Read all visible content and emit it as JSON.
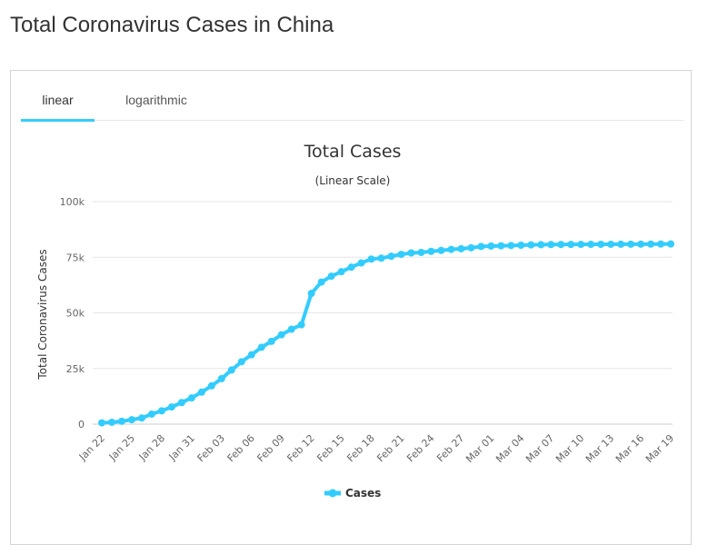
{
  "page": {
    "title": "Total Coronavirus Cases in China"
  },
  "tabs": [
    {
      "label": "linear",
      "active": true
    },
    {
      "label": "logarithmic",
      "active": false
    }
  ],
  "colors": {
    "series": "#33ccff",
    "tab_underline": "#33ccff",
    "grid": "#e6e6e6"
  },
  "chart_data": {
    "type": "line",
    "title": "Total Cases",
    "subtitle": "(Linear Scale)",
    "xlabel": "",
    "ylabel": "Total Coronavirus Cases",
    "ylim": [
      0,
      100000
    ],
    "y_ticks": [
      0,
      25000,
      50000,
      75000,
      100000
    ],
    "y_tick_labels": [
      "0",
      "25k",
      "50k",
      "75k",
      "100k"
    ],
    "grid": true,
    "legend": "bottom-center",
    "x_tick_labels": [
      "Jan 22",
      "Jan 25",
      "Jan 28",
      "Jan 31",
      "Feb 03",
      "Feb 06",
      "Feb 09",
      "Feb 12",
      "Feb 15",
      "Feb 18",
      "Feb 21",
      "Feb 24",
      "Feb 27",
      "Mar 01",
      "Mar 04",
      "Mar 07",
      "Mar 10",
      "Mar 13",
      "Mar 16",
      "Mar 19"
    ],
    "x": [
      "Jan 22",
      "Jan 23",
      "Jan 24",
      "Jan 25",
      "Jan 26",
      "Jan 27",
      "Jan 28",
      "Jan 29",
      "Jan 30",
      "Jan 31",
      "Feb 01",
      "Feb 02",
      "Feb 03",
      "Feb 04",
      "Feb 05",
      "Feb 06",
      "Feb 07",
      "Feb 08",
      "Feb 09",
      "Feb 10",
      "Feb 11",
      "Feb 12",
      "Feb 13",
      "Feb 14",
      "Feb 15",
      "Feb 16",
      "Feb 17",
      "Feb 18",
      "Feb 19",
      "Feb 20",
      "Feb 21",
      "Feb 22",
      "Feb 23",
      "Feb 24",
      "Feb 25",
      "Feb 26",
      "Feb 27",
      "Feb 28",
      "Feb 29",
      "Mar 01",
      "Mar 02",
      "Mar 03",
      "Mar 04",
      "Mar 05",
      "Mar 06",
      "Mar 07",
      "Mar 08",
      "Mar 09",
      "Mar 10",
      "Mar 11",
      "Mar 12",
      "Mar 13",
      "Mar 14",
      "Mar 15",
      "Mar 16",
      "Mar 17",
      "Mar 18",
      "Mar 19"
    ],
    "series": [
      {
        "name": "Cases",
        "values": [
          571,
          830,
          1287,
          1975,
          2744,
          4515,
          5974,
          7711,
          9692,
          11791,
          14380,
          17205,
          20438,
          24324,
          28018,
          31161,
          34546,
          37198,
          40171,
          42638,
          44653,
          58761,
          63851,
          66492,
          68500,
          70548,
          72436,
          74185,
          74576,
          75465,
          76288,
          76936,
          77150,
          77658,
          78064,
          78497,
          78824,
          79251,
          79824,
          80026,
          80151,
          80270,
          80409,
          80552,
          80651,
          80695,
          80735,
          80754,
          80778,
          80793,
          80813,
          80824,
          80844,
          80860,
          80881,
          80894,
          80928,
          80967
        ]
      }
    ]
  }
}
